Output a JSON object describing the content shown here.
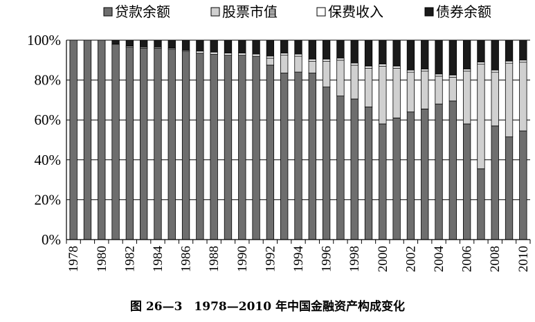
{
  "caption": "图 26—3　1978—2010 年中国金融资产构成变化",
  "chart_data": {
    "type": "bar",
    "stacked": true,
    "title": "",
    "xlabel": "",
    "ylabel": "",
    "ylim": [
      0,
      100
    ],
    "yticks": [
      "0%",
      "20%",
      "40%",
      "60%",
      "80%",
      "100%"
    ],
    "grid": true,
    "legend_position": "top",
    "categories": [
      "1978",
      "1979",
      "1980",
      "1981",
      "1982",
      "1983",
      "1984",
      "1985",
      "1986",
      "1987",
      "1988",
      "1989",
      "1990",
      "1991",
      "1992",
      "1993",
      "1994",
      "1995",
      "1996",
      "1997",
      "1998",
      "1999",
      "2000",
      "2001",
      "2002",
      "2003",
      "2004",
      "2005",
      "2006",
      "2007",
      "2008",
      "2009",
      "2010"
    ],
    "xtick_labels": [
      "1978",
      "1980",
      "1982",
      "1984",
      "1986",
      "1988",
      "1990",
      "1992",
      "1994",
      "1996",
      "1998",
      "2000",
      "2002",
      "2004",
      "2006",
      "2008",
      "2010"
    ],
    "series": [
      {
        "name": "贷款余额",
        "color": "#6e6e6e",
        "values": [
          100,
          100,
          100,
          98,
          96.5,
          96,
          96,
          95.5,
          94.5,
          93.5,
          93,
          92.5,
          92.5,
          92,
          87.5,
          83.5,
          84,
          83.5,
          76.5,
          72,
          70.5,
          66.5,
          58,
          61,
          64,
          65.5,
          68,
          69.5,
          58,
          35.5,
          57,
          51.5,
          54.5
        ]
      },
      {
        "name": "股票市值",
        "color": "#d0d0d0",
        "values": [
          0,
          0,
          0,
          0,
          0,
          0,
          0,
          0,
          0,
          0,
          0,
          0,
          0,
          0,
          3.5,
          9,
          8,
          6,
          13,
          18,
          17,
          19.5,
          29,
          25,
          20,
          19,
          14,
          12,
          26.5,
          52.5,
          27,
          37,
          34.5
        ]
      },
      {
        "name": "保费收入",
        "color": "#ffffff",
        "values": [
          0,
          0,
          0,
          0,
          0.5,
          0.5,
          0.5,
          0.5,
          0.5,
          1,
          1,
          1,
          1,
          1,
          1,
          1,
          1,
          1,
          1,
          1,
          1,
          1,
          1,
          1,
          1,
          1,
          1,
          1,
          1,
          1,
          1,
          1,
          1
        ]
      },
      {
        "name": "债券余额",
        "color": "#1a1a1a",
        "values": [
          0,
          0,
          0,
          2,
          3,
          3.5,
          3.5,
          4,
          5,
          5.5,
          6,
          6.5,
          6.5,
          7,
          8,
          6.5,
          7,
          9.5,
          9.5,
          9,
          11.5,
          13,
          12,
          13,
          15,
          14.5,
          17,
          17.5,
          14.5,
          11,
          15,
          10.5,
          10
        ]
      }
    ]
  }
}
